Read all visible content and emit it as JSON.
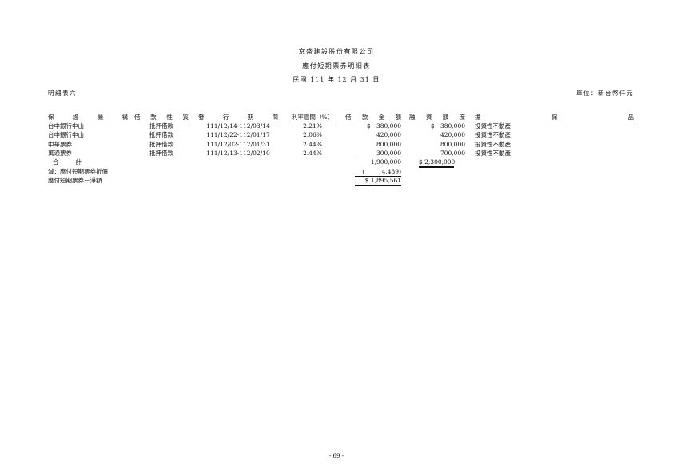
{
  "header": {
    "company": "京盛建設股份有限公司",
    "title": "應付短期票券明細表",
    "date": "民國 111 年 12 月 31 日",
    "left_label": "明細表六",
    "unit": "單位：新台幣仟元"
  },
  "table": {
    "columns": [
      "保證機構",
      "借款性質",
      "發行期間",
      "利率區間（%）",
      "借款金額",
      "融資額度",
      "擔保品"
    ],
    "rows": [
      [
        "台中銀行中山",
        "抵押借款",
        "111/12/14-112/03/14",
        "2.21%",
        "$   380,000",
        "$   380,000",
        "投資性不動產"
      ],
      [
        "台中銀行中山",
        "抵押借款",
        "111/12/22-112/01/17",
        "2.06%",
        "420,000",
        "420,000",
        "投資性不動產"
      ],
      [
        "中華票券",
        "抵押借款",
        "111/12/02-112/01/31",
        "2.44%",
        "800,000",
        "800,000",
        "投資性不動產"
      ],
      [
        "萬通票券",
        "抵押借款",
        "111/12/13-112/02/10",
        "2.44%",
        "300,000",
        "700,000",
        "投資性不動產"
      ]
    ]
  },
  "summary": [
    {
      "label": "合　　計",
      "amount": "1,900,000",
      "credit": "$ 2,300,000"
    },
    {
      "label": "減：應付短期票券折價",
      "amount": "(         4,439)"
    },
    {
      "label": "應付短期票券－淨額",
      "amount": "$ 1,895,561"
    }
  ],
  "footer": {
    "page": "- 69 -"
  }
}
